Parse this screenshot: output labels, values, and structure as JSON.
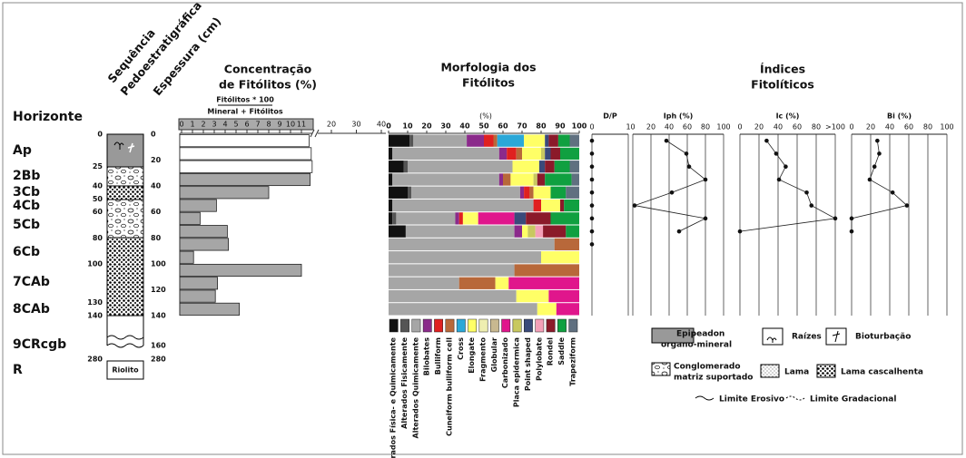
{
  "profile": {
    "horizon_header": "Horizonte",
    "sequence_title": [
      "Sequência",
      "Pedoestratigráfica"
    ],
    "thickness_title": "Espessura (cm)",
    "horizons": [
      "Ap",
      "2Bb",
      "3Cb",
      "4Cb",
      "5Cb",
      "6Cb",
      "7CAb",
      "8CAb",
      "9CRcgb",
      "R"
    ],
    "left_depths": [
      0,
      25,
      40,
      50,
      60,
      80,
      100,
      130,
      140,
      280
    ],
    "right_depths": [
      0,
      20,
      40,
      60,
      80,
      100,
      120,
      140,
      160,
      280
    ],
    "bedrock": "Riolito"
  },
  "chart_data": [
    {
      "type": "bar",
      "orientation": "horizontal",
      "title": [
        "Concentração",
        "de Fitólitos (%)"
      ],
      "formula": [
        "Fitólitos * 100",
        "Mineral + Fitólitos"
      ],
      "values": [
        11.7,
        11.9,
        12.3,
        11.8,
        8,
        3.2,
        1.7,
        4.2,
        4.3,
        1.1,
        11,
        3.3,
        3.1,
        5.3
      ],
      "colors": [
        "#ffffff",
        "#ffffff",
        "#ffffff",
        "#a6a6a6",
        "#a6a6a6",
        "#a6a6a6",
        "#a6a6a6",
        "#a6a6a6",
        "#a6a6a6",
        "#a6a6a6",
        "#a6a6a6",
        "#a6a6a6",
        "#a6a6a6",
        "#a6a6a6"
      ],
      "xlim": [
        0,
        40
      ],
      "xticks": [
        0,
        1,
        2,
        3,
        4,
        5,
        6,
        7,
        8,
        9,
        10,
        11,
        20,
        30,
        40
      ]
    },
    {
      "type": "stacked_bar",
      "orientation": "horizontal",
      "title": [
        "Morfologia dos",
        "Fitólitos"
      ],
      "xlabel": "(%)",
      "xlim": [
        0,
        100
      ],
      "xticks": [
        0,
        10,
        20,
        30,
        40,
        50,
        60,
        70,
        80,
        90,
        100
      ],
      "series": [
        {
          "name": "Alterados Física- e Quimicamente",
          "color": "#111111",
          "values": [
            11,
            2,
            8,
            2,
            10,
            2,
            2,
            9,
            0,
            0,
            0,
            0,
            0,
            0
          ]
        },
        {
          "name": "Alterados Fisicamente",
          "color": "#555555",
          "values": [
            2,
            0,
            2,
            0,
            2,
            0,
            2,
            0,
            0,
            0,
            0,
            0,
            0,
            0
          ]
        },
        {
          "name": "Alterados Quimicamente",
          "color": "#a6a6a6",
          "values": [
            28,
            56,
            55,
            56,
            57,
            74,
            31,
            57,
            87,
            80,
            66,
            37,
            67,
            78
          ]
        },
        {
          "name": "Bilobates",
          "color": "#8b2a8b",
          "values": [
            9,
            4,
            0,
            2,
            2,
            0,
            2,
            4,
            0,
            0,
            0,
            0,
            0,
            0
          ]
        },
        {
          "name": "Bulliform",
          "color": "#e02020",
          "values": [
            5,
            5,
            0,
            0,
            3,
            4,
            2,
            0,
            0,
            0,
            0,
            0,
            0,
            0
          ]
        },
        {
          "name": "Cuneiform bulliform cell",
          "color": "#b8683a",
          "values": [
            2,
            3,
            0,
            4,
            2,
            0,
            0,
            0,
            13,
            0,
            34,
            19,
            0,
            0
          ]
        },
        {
          "name": "Cross",
          "color": "#2aa8d8",
          "values": [
            14,
            0,
            0,
            0,
            0,
            0,
            0,
            0,
            0,
            0,
            0,
            0,
            0,
            0
          ]
        },
        {
          "name": "Elongate",
          "color": "#ffff66",
          "values": [
            11,
            10,
            14,
            12,
            9,
            10,
            8,
            3,
            0,
            20,
            0,
            7,
            17,
            10
          ]
        },
        {
          "name": "Fragmento",
          "color": "#eeeeb0",
          "values": [
            0,
            0,
            0,
            0,
            0,
            0,
            0,
            0,
            0,
            0,
            0,
            0,
            0,
            0
          ]
        },
        {
          "name": "Globular",
          "color": "#c8b890",
          "values": [
            0,
            0,
            0,
            0,
            0,
            0,
            0,
            0,
            0,
            0,
            0,
            0,
            0,
            0
          ]
        },
        {
          "name": "Carbonizado",
          "color": "#e0168c",
          "values": [
            0,
            0,
            0,
            0,
            0,
            0,
            19,
            0,
            0,
            0,
            0,
            37,
            16,
            12
          ]
        },
        {
          "name": "Placa epidermica",
          "color": "#c8c860",
          "values": [
            0,
            2,
            0,
            2,
            0,
            0,
            0,
            4,
            0,
            0,
            0,
            0,
            0,
            0
          ]
        },
        {
          "name": "Point shaped",
          "color": "#3a4a7a",
          "values": [
            2,
            3,
            3,
            0,
            0,
            0,
            6,
            0,
            0,
            0,
            0,
            0,
            0,
            0
          ]
        },
        {
          "name": "Polylobate",
          "color": "#f4a0b8",
          "values": [
            0,
            0,
            0,
            0,
            0,
            0,
            0,
            4,
            0,
            0,
            0,
            0,
            0,
            0
          ]
        },
        {
          "name": "Rondel",
          "color": "#8b1a2a",
          "values": [
            5,
            5,
            5,
            4,
            0,
            2,
            13,
            12,
            0,
            0,
            0,
            0,
            0,
            0
          ]
        },
        {
          "name": "Saddle",
          "color": "#10a040",
          "values": [
            6,
            10,
            8,
            14,
            8,
            8,
            15,
            7,
            0,
            0,
            0,
            0,
            0,
            0
          ]
        },
        {
          "name": "Trapeziform",
          "color": "#607080",
          "values": [
            5,
            0,
            5,
            4,
            7,
            0,
            0,
            0,
            0,
            0,
            0,
            0,
            0,
            0
          ]
        }
      ]
    },
    {
      "type": "line",
      "title": "D/P",
      "connect": false,
      "xlim": [
        0,
        1
      ],
      "xticks": [
        0,
        1
      ],
      "ylim": [
        0,
        140
      ],
      "y": [
        5,
        15,
        25,
        35,
        45,
        55,
        65,
        75,
        85
      ],
      "values": [
        0,
        0,
        0,
        0,
        0,
        0,
        0,
        0,
        0
      ]
    },
    {
      "type": "line",
      "title": "Iph (%)",
      "connect": true,
      "xlim": [
        0,
        100
      ],
      "xticks": [
        0,
        20,
        40,
        60,
        80,
        100
      ],
      "ylim": [
        0,
        140
      ],
      "y": [
        5,
        15,
        25,
        35,
        45,
        55,
        65,
        75
      ],
      "values": [
        37,
        59,
        62,
        80,
        43,
        2,
        80,
        51
      ]
    },
    {
      "type": "line",
      "title": "Ic (%)",
      "connect": true,
      "xlim": [
        0,
        100
      ],
      "xticks": [
        0,
        20,
        40,
        60,
        80,
        {
          "value": 100,
          "label": ">100"
        }
      ],
      "ylim": [
        0,
        140
      ],
      "y": [
        5,
        15,
        25,
        35,
        45,
        55,
        65,
        75
      ],
      "values": [
        28,
        38,
        48,
        41,
        70,
        75,
        100,
        0
      ]
    },
    {
      "type": "line",
      "title": "Bi (%)",
      "connect": true,
      "xlim": [
        0,
        100
      ],
      "xticks": [
        0,
        20,
        40,
        60,
        80,
        100
      ],
      "ylim": [
        0,
        140
      ],
      "y": [
        5,
        15,
        25,
        35,
        45,
        55,
        65,
        75
      ],
      "values": [
        27,
        29,
        24,
        19,
        43,
        58,
        0,
        0
      ]
    }
  ],
  "indices_title": [
    "Índices",
    "Fitolíticos"
  ],
  "legend": {
    "epipedon": [
      "Epipeadon",
      "organo-mineral"
    ],
    "roots": "Raízes",
    "bioturbation": "Bioturbação",
    "conglomerate": [
      "Conglomerado",
      "matriz suportado"
    ],
    "mud": "Lama",
    "gravelly_mud": "Lama cascalhenta",
    "erosive": "Limite Erosivo",
    "gradational": "Limite Gradacional"
  }
}
